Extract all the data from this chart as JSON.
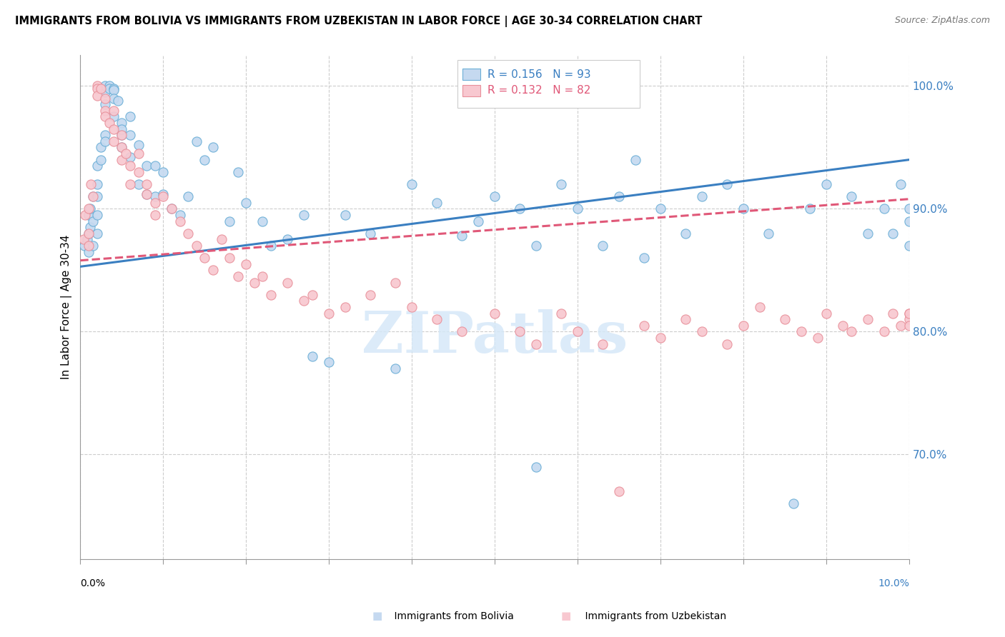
{
  "title": "IMMIGRANTS FROM BOLIVIA VS IMMIGRANTS FROM UZBEKISTAN IN LABOR FORCE | AGE 30-34 CORRELATION CHART",
  "source": "Source: ZipAtlas.com",
  "ylabel": "In Labor Force | Age 30-34",
  "right_yticks": [
    1.0,
    0.9,
    0.8,
    0.7
  ],
  "right_ytick_labels": [
    "100.0%",
    "90.0%",
    "80.0%",
    "70.0%"
  ],
  "xmin": 0.0,
  "xmax": 0.1,
  "ymin": 0.615,
  "ymax": 1.025,
  "bolivia_R": 0.156,
  "bolivia_N": 93,
  "uzbekistan_R": 0.132,
  "uzbekistan_N": 82,
  "bolivia_color": "#c5d9f0",
  "bolivia_edge_color": "#6aaed6",
  "bolivia_line_color": "#3a7fc1",
  "uzbekistan_color": "#f8c8d0",
  "uzbekistan_edge_color": "#e8909a",
  "uzbekistan_line_color": "#e05878",
  "legend_text_color": "#3a7fc1",
  "legend_N_color": "#e05878",
  "watermark": "ZIPatlas",
  "watermark_color": "#d6e8f8",
  "bolivia_x": [
    0.0005,
    0.0008,
    0.001,
    0.001,
    0.001,
    0.0012,
    0.0012,
    0.0015,
    0.0015,
    0.0015,
    0.002,
    0.002,
    0.002,
    0.002,
    0.002,
    0.0025,
    0.0025,
    0.003,
    0.003,
    0.003,
    0.003,
    0.003,
    0.0035,
    0.0035,
    0.004,
    0.004,
    0.004,
    0.004,
    0.0045,
    0.005,
    0.005,
    0.005,
    0.005,
    0.006,
    0.006,
    0.006,
    0.007,
    0.007,
    0.008,
    0.008,
    0.009,
    0.009,
    0.01,
    0.01,
    0.011,
    0.012,
    0.013,
    0.014,
    0.015,
    0.016,
    0.018,
    0.019,
    0.02,
    0.022,
    0.023,
    0.025,
    0.027,
    0.028,
    0.03,
    0.032,
    0.035,
    0.038,
    0.04,
    0.043,
    0.046,
    0.048,
    0.05,
    0.053,
    0.055,
    0.058,
    0.06,
    0.063,
    0.065,
    0.067,
    0.07,
    0.073,
    0.075,
    0.078,
    0.08,
    0.083,
    0.086,
    0.088,
    0.09,
    0.093,
    0.095,
    0.097,
    0.098,
    0.099,
    0.1,
    0.1,
    0.1,
    0.055,
    0.068
  ],
  "bolivia_y": [
    0.87,
    0.875,
    0.88,
    0.865,
    0.895,
    0.9,
    0.885,
    0.87,
    0.89,
    0.91,
    0.92,
    0.91,
    0.895,
    0.88,
    0.935,
    0.95,
    0.94,
    0.96,
    0.955,
    0.985,
    0.995,
    1.0,
    1.0,
    0.998,
    0.998,
    0.997,
    0.99,
    0.975,
    0.988,
    0.97,
    0.96,
    0.95,
    0.965,
    0.975,
    0.96,
    0.942,
    0.952,
    0.92,
    0.935,
    0.912,
    0.935,
    0.91,
    0.93,
    0.912,
    0.9,
    0.895,
    0.91,
    0.955,
    0.94,
    0.95,
    0.89,
    0.93,
    0.905,
    0.89,
    0.87,
    0.875,
    0.895,
    0.78,
    0.775,
    0.895,
    0.88,
    0.77,
    0.92,
    0.905,
    0.878,
    0.89,
    0.91,
    0.9,
    0.87,
    0.92,
    0.9,
    0.87,
    0.91,
    0.94,
    0.9,
    0.88,
    0.91,
    0.92,
    0.9,
    0.88,
    0.66,
    0.9,
    0.92,
    0.91,
    0.88,
    0.9,
    0.88,
    0.92,
    0.9,
    0.89,
    0.87,
    0.69,
    0.86
  ],
  "uzbekistan_x": [
    0.0004,
    0.0006,
    0.001,
    0.001,
    0.001,
    0.0013,
    0.0015,
    0.002,
    0.002,
    0.002,
    0.0025,
    0.003,
    0.003,
    0.003,
    0.0035,
    0.004,
    0.004,
    0.004,
    0.005,
    0.005,
    0.005,
    0.0055,
    0.006,
    0.006,
    0.007,
    0.007,
    0.008,
    0.008,
    0.009,
    0.009,
    0.01,
    0.011,
    0.012,
    0.013,
    0.014,
    0.015,
    0.016,
    0.017,
    0.018,
    0.019,
    0.02,
    0.021,
    0.022,
    0.023,
    0.025,
    0.027,
    0.028,
    0.03,
    0.032,
    0.035,
    0.038,
    0.04,
    0.043,
    0.046,
    0.05,
    0.053,
    0.055,
    0.058,
    0.06,
    0.063,
    0.065,
    0.068,
    0.07,
    0.073,
    0.075,
    0.078,
    0.08,
    0.082,
    0.085,
    0.087,
    0.089,
    0.09,
    0.092,
    0.093,
    0.095,
    0.097,
    0.098,
    0.099,
    0.1,
    0.1,
    0.1,
    0.1
  ],
  "uzbekistan_y": [
    0.875,
    0.895,
    0.9,
    0.88,
    0.87,
    0.92,
    0.91,
    1.0,
    0.998,
    0.992,
    0.998,
    0.99,
    0.98,
    0.975,
    0.97,
    0.965,
    0.955,
    0.98,
    0.96,
    0.95,
    0.94,
    0.945,
    0.935,
    0.92,
    0.945,
    0.93,
    0.92,
    0.912,
    0.905,
    0.895,
    0.91,
    0.9,
    0.89,
    0.88,
    0.87,
    0.86,
    0.85,
    0.875,
    0.86,
    0.845,
    0.855,
    0.84,
    0.845,
    0.83,
    0.84,
    0.825,
    0.83,
    0.815,
    0.82,
    0.83,
    0.84,
    0.82,
    0.81,
    0.8,
    0.815,
    0.8,
    0.79,
    0.815,
    0.8,
    0.79,
    0.67,
    0.805,
    0.795,
    0.81,
    0.8,
    0.79,
    0.805,
    0.82,
    0.81,
    0.8,
    0.795,
    0.815,
    0.805,
    0.8,
    0.81,
    0.8,
    0.815,
    0.805,
    0.815,
    0.81,
    0.815,
    0.805
  ]
}
